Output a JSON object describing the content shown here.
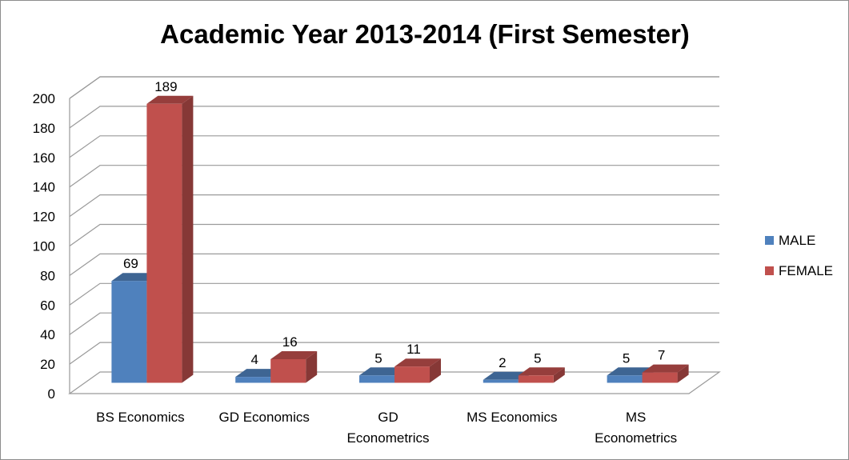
{
  "chart_data": {
    "type": "bar",
    "title": "Academic Year 2013-2014 (First Semester)",
    "categories": [
      [
        "BS Economics"
      ],
      [
        "GD Economics"
      ],
      [
        "GD",
        "Econometrics"
      ],
      [
        "MS Economics"
      ],
      [
        "MS",
        "Econometrics"
      ]
    ],
    "series": [
      {
        "name": "MALE",
        "color": "#4f81bd",
        "values": [
          69,
          4,
          5,
          2,
          5
        ]
      },
      {
        "name": "FEMALE",
        "color": "#c0504d",
        "values": [
          189,
          16,
          11,
          5,
          7
        ]
      }
    ],
    "ylim": [
      0,
      200
    ],
    "yticks": [
      "0",
      "20",
      "40",
      "60",
      "80",
      "100",
      "120",
      "140",
      "160",
      "180",
      "200"
    ],
    "grid": true,
    "legend_position": "right",
    "style": "3d-clustered-column"
  }
}
